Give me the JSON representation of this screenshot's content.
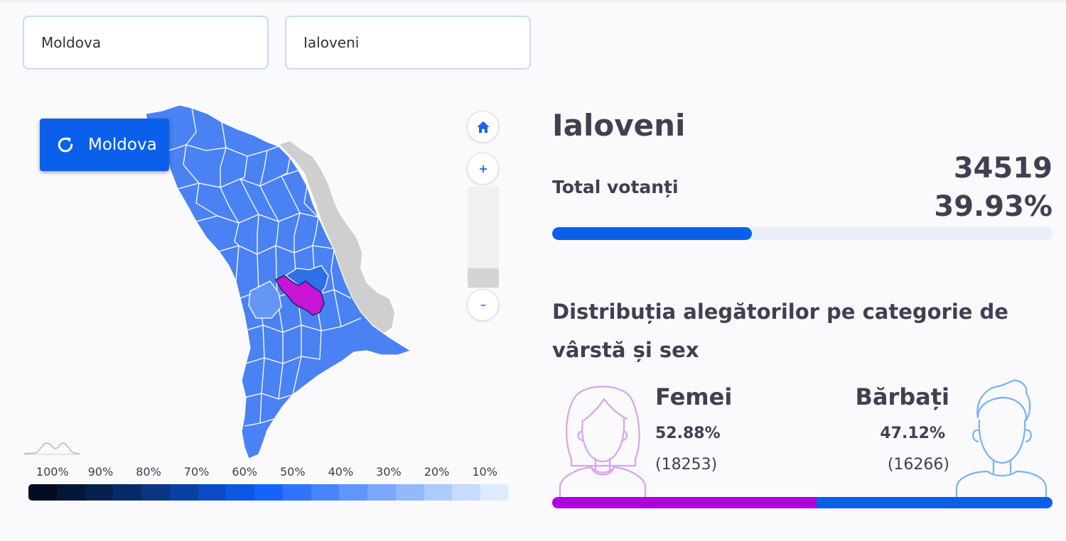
{
  "selects": {
    "country": "Moldova",
    "district": "Ialoveni"
  },
  "map": {
    "reset_label": "Moldova",
    "highlight_color": "#c914d6",
    "region_color": "#4a82f3",
    "outside_color": "#cfcfcf",
    "legend": {
      "labels": [
        "100%",
        "90%",
        "80%",
        "70%",
        "60%",
        "50%",
        "40%",
        "30%",
        "20%",
        "10%"
      ],
      "colors": [
        "#020b1f",
        "#041737",
        "#06214f",
        "#072b68",
        "#083684",
        "#0840a4",
        "#0a4cc6",
        "#0b58e4",
        "#1563fb",
        "#2f74fb",
        "#4785fb",
        "#6096fc",
        "#78a7fc",
        "#93b9fd",
        "#adcbfd",
        "#c8dbfe",
        "#deeafe"
      ]
    }
  },
  "panel": {
    "title": "Ialoveni",
    "total_label": "Total votanți",
    "total_count": "34519",
    "total_percent": "39.93%",
    "turnout_fraction": 0.3993,
    "distribution_title": "Distribuția alegătorilor pe categorie de vârstă și sex",
    "female": {
      "label": "Femei",
      "percent": "52.88%",
      "count": "(18253)",
      "fraction": 0.5288,
      "color": "#b000e0"
    },
    "male": {
      "label": "Bărbați",
      "percent": "47.12%",
      "count": "(16266)",
      "fraction": 0.4712,
      "color": "#0a5fea"
    }
  },
  "icons": [
    "refresh-icon",
    "home-icon",
    "zoom-in-icon",
    "zoom-out-icon",
    "minimap-icon",
    "female-avatar-icon",
    "male-avatar-icon"
  ]
}
